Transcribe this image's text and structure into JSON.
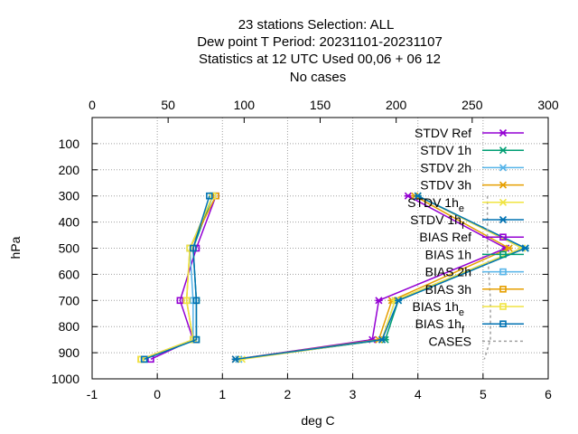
{
  "chart_data": {
    "type": "line",
    "title_lines": [
      "23 stations Selection: ALL",
      "Dew point T  Period: 20231101-20231107",
      "Statistics at 12 UTC  Used  00,06  + 06 12",
      "No cases"
    ],
    "xlabel": "deg C",
    "ylabel": "hPa",
    "xlim": [
      -1,
      6
    ],
    "x2lim": [
      0,
      300
    ],
    "ylim": [
      1000,
      0
    ],
    "x_ticks": [
      "-1",
      "0",
      "1",
      "2",
      "3",
      "4",
      "5",
      "6"
    ],
    "x2_ticks": [
      "0",
      "50",
      "100",
      "150",
      "200",
      "250",
      "300"
    ],
    "y_ticks": [
      "100",
      "200",
      "300",
      "400",
      "500",
      "600",
      "700",
      "800",
      "900",
      "1000"
    ],
    "grid": true,
    "legend_position": "top-right",
    "series": [
      {
        "label": "STDV Ref",
        "sub": "",
        "color": "#9400d3",
        "marker": "x",
        "points": [
          [
            3.85,
            300
          ],
          [
            5.35,
            500
          ],
          [
            3.4,
            700
          ],
          [
            3.3,
            850
          ],
          [
            1.2,
            925
          ]
        ]
      },
      {
        "label": "STDV 1h",
        "sub": "",
        "color": "#009e73",
        "marker": "x",
        "points": [
          [
            4.0,
            300
          ],
          [
            5.65,
            500
          ],
          [
            3.7,
            700
          ],
          [
            3.5,
            850
          ],
          [
            1.25,
            925
          ]
        ]
      },
      {
        "label": "STDV 2h",
        "sub": "",
        "color": "#56b4e9",
        "marker": "x",
        "points": [
          [
            4.0,
            300
          ],
          [
            5.6,
            500
          ],
          [
            3.65,
            700
          ],
          [
            3.45,
            850
          ],
          [
            1.25,
            925
          ]
        ]
      },
      {
        "label": "STDV 3h",
        "sub": "",
        "color": "#e69f00",
        "marker": "x",
        "points": [
          [
            3.95,
            300
          ],
          [
            5.4,
            500
          ],
          [
            3.6,
            700
          ],
          [
            3.4,
            850
          ],
          [
            1.2,
            925
          ]
        ]
      },
      {
        "label": "STDV 1h",
        "sub": "e",
        "color": "#f0e442",
        "marker": "x",
        "points": [
          [
            4.0,
            300
          ],
          [
            5.6,
            500
          ],
          [
            3.65,
            700
          ],
          [
            3.45,
            850
          ],
          [
            1.3,
            925
          ]
        ]
      },
      {
        "label": "STDV 1h",
        "sub": "f",
        "color": "#0072b2",
        "marker": "x",
        "points": [
          [
            4.0,
            300
          ],
          [
            5.65,
            500
          ],
          [
            3.7,
            700
          ],
          [
            3.45,
            850
          ],
          [
            1.2,
            925
          ]
        ]
      },
      {
        "label": "BIAS Ref",
        "sub": "",
        "color": "#9400d3",
        "marker": "square",
        "points": [
          [
            0.9,
            300
          ],
          [
            0.6,
            500
          ],
          [
            0.35,
            700
          ],
          [
            0.55,
            850
          ],
          [
            -0.1,
            925
          ]
        ]
      },
      {
        "label": "BIAS 1h",
        "sub": "",
        "color": "#009e73",
        "marker": "square",
        "points": [
          [
            0.85,
            300
          ],
          [
            0.55,
            500
          ],
          [
            0.6,
            700
          ],
          [
            0.6,
            850
          ],
          [
            -0.2,
            925
          ]
        ]
      },
      {
        "label": "BIAS 2h",
        "sub": "",
        "color": "#56b4e9",
        "marker": "square",
        "points": [
          [
            0.85,
            300
          ],
          [
            0.5,
            500
          ],
          [
            0.55,
            700
          ],
          [
            0.55,
            850
          ],
          [
            -0.2,
            925
          ]
        ]
      },
      {
        "label": "BIAS 3h",
        "sub": "",
        "color": "#e69f00",
        "marker": "square",
        "points": [
          [
            0.9,
            300
          ],
          [
            0.5,
            500
          ],
          [
            0.45,
            700
          ],
          [
            0.55,
            850
          ],
          [
            -0.25,
            925
          ]
        ]
      },
      {
        "label": "BIAS 1h",
        "sub": "e",
        "color": "#f0e442",
        "marker": "square",
        "points": [
          [
            0.85,
            300
          ],
          [
            0.5,
            500
          ],
          [
            0.45,
            700
          ],
          [
            0.55,
            850
          ],
          [
            -0.25,
            925
          ]
        ]
      },
      {
        "label": "BIAS 1h",
        "sub": "f",
        "color": "#0072b2",
        "marker": "square",
        "points": [
          [
            0.8,
            300
          ],
          [
            0.55,
            500
          ],
          [
            0.6,
            700
          ],
          [
            0.6,
            850
          ],
          [
            -0.2,
            925
          ]
        ]
      }
    ],
    "cases": {
      "label": "CASES",
      "color": "#a0a0a0",
      "axis": "x2",
      "points": [
        [
          260,
          300
        ],
        [
          260,
          500
        ],
        [
          262,
          700
        ],
        [
          262,
          850
        ],
        [
          258,
          925
        ]
      ]
    }
  }
}
